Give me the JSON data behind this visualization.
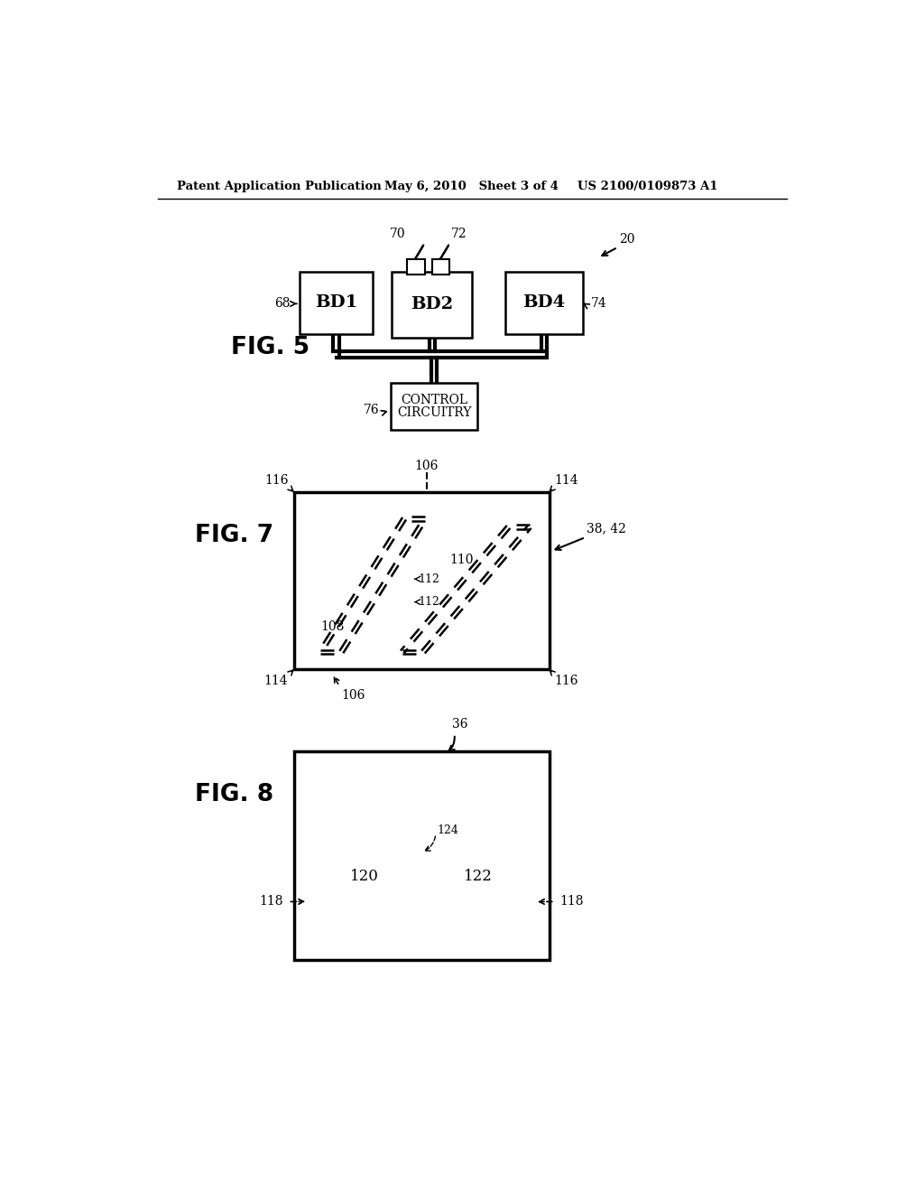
{
  "bg_color": "#ffffff",
  "header_left": "Patent Application Publication",
  "header_mid": "May 6, 2010   Sheet 3 of 4",
  "header_right": "US 2100/0109873 A1"
}
